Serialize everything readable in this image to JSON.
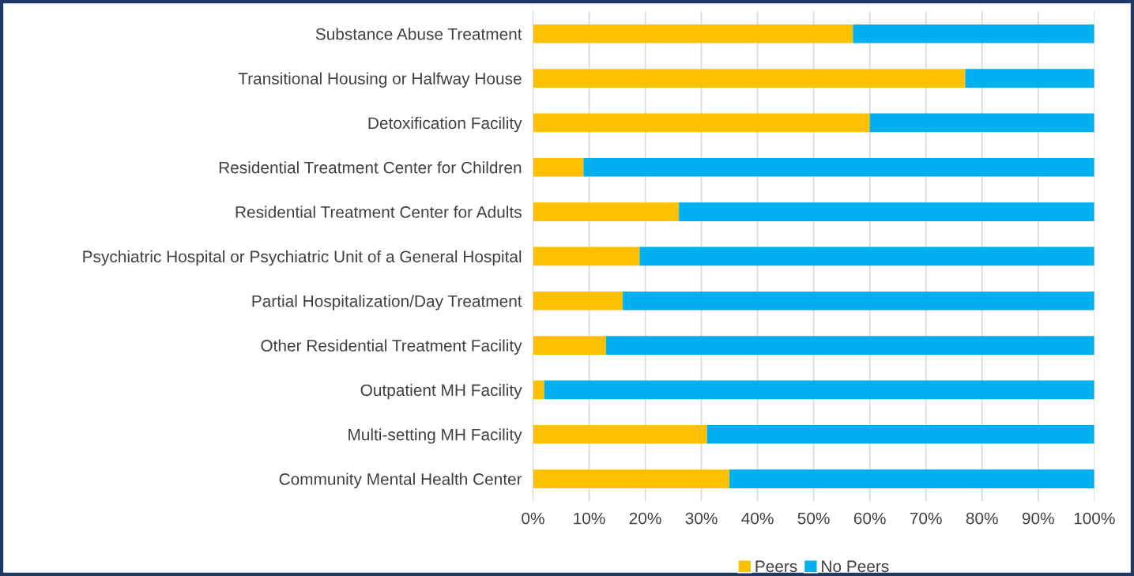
{
  "chart_data": {
    "type": "bar",
    "orientation": "horizontal",
    "stacked": true,
    "categories": [
      "Substance Abuse Treatment",
      "Transitional Housing or Halfway House",
      "Detoxification Facility",
      "Residential Treatment Center for Children",
      "Residential Treatment Center for Adults",
      "Psychiatric Hospital or Psychiatric Unit of a General Hospital",
      "Partial Hospitalization/Day Treatment",
      "Other Residential Treatment Facility",
      "Outpatient MH Facility",
      "Multi-setting MH Facility",
      "Community Mental Health Center"
    ],
    "series": [
      {
        "name": "Peers",
        "color": "#ffc000",
        "values": [
          57,
          77,
          60,
          9,
          26,
          19,
          16,
          13,
          2,
          31,
          35
        ]
      },
      {
        "name": "No Peers",
        "color": "#00b0f0",
        "values": [
          43,
          23,
          40,
          91,
          74,
          81,
          84,
          87,
          98,
          69,
          65
        ]
      }
    ],
    "xlim": [
      0,
      100
    ],
    "xticks": [
      {
        "value": 0,
        "label": "0%"
      },
      {
        "value": 10,
        "label": "10%"
      },
      {
        "value": 20,
        "label": "20%"
      },
      {
        "value": 30,
        "label": "30%"
      },
      {
        "value": 40,
        "label": "40%"
      },
      {
        "value": 50,
        "label": "50%"
      },
      {
        "value": 60,
        "label": "60%"
      },
      {
        "value": 70,
        "label": "70%"
      },
      {
        "value": 80,
        "label": "80%"
      },
      {
        "value": 90,
        "label": "90%"
      },
      {
        "value": 100,
        "label": "100%"
      }
    ],
    "grid": "x",
    "legend": "bottom"
  }
}
